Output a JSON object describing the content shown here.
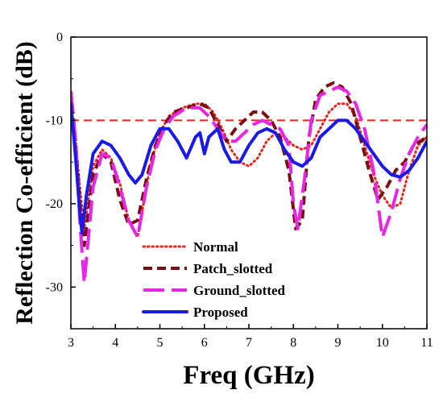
{
  "chart_data": {
    "type": "line",
    "title": "",
    "xlabel": "Freq (GHz)",
    "ylabel": "Reflection Co-efficient (dB)",
    "xlim": [
      3,
      11
    ],
    "ylim": [
      -35,
      0
    ],
    "xticks": [
      3,
      4,
      5,
      6,
      7,
      8,
      9,
      10,
      11
    ],
    "yticks": [
      0,
      -10,
      -20,
      -30
    ],
    "grid": false,
    "legend_position": "bottom-left",
    "reference_line": {
      "y": -10,
      "color": "#e8241c",
      "style": "dashed"
    },
    "series": [
      {
        "name": "Normal",
        "color": "#e8241c",
        "style": "dotted",
        "x": [
          3.0,
          3.1,
          3.2,
          3.3,
          3.5,
          3.7,
          3.9,
          4.1,
          4.3,
          4.5,
          4.6,
          4.8,
          5.0,
          5.2,
          5.5,
          5.8,
          6.0,
          6.2,
          6.4,
          6.6,
          6.8,
          7.0,
          7.2,
          7.4,
          7.6,
          7.8,
          8.0,
          8.2,
          8.4,
          8.6,
          8.8,
          9.0,
          9.2,
          9.4,
          9.6,
          9.8,
          10.0,
          10.2,
          10.4,
          10.6,
          10.8,
          11.0
        ],
        "y": [
          -8,
          -12,
          -18,
          -23,
          -15.5,
          -13.5,
          -14.5,
          -17.5,
          -22,
          -24,
          -21,
          -15,
          -11.5,
          -9.5,
          -8.5,
          -8,
          -8,
          -9,
          -11,
          -13.5,
          -15,
          -15.5,
          -14.5,
          -12.5,
          -11.5,
          -12,
          -13,
          -13.5,
          -13,
          -11,
          -9,
          -8,
          -8,
          -9.5,
          -13,
          -16.5,
          -19,
          -20.5,
          -20,
          -16,
          -13,
          -12
        ]
      },
      {
        "name": "Patch_slotted",
        "color": "#7a0f12",
        "style": "dashed",
        "x": [
          3.0,
          3.1,
          3.2,
          3.3,
          3.5,
          3.7,
          3.9,
          4.1,
          4.3,
          4.5,
          4.7,
          4.9,
          5.1,
          5.3,
          5.6,
          5.9,
          6.1,
          6.3,
          6.5,
          6.7,
          6.9,
          7.1,
          7.3,
          7.5,
          7.7,
          7.9,
          8.05,
          8.2,
          8.35,
          8.5,
          8.7,
          8.9,
          9.1,
          9.3,
          9.5,
          9.7,
          9.9,
          10.1,
          10.3,
          10.5,
          10.7,
          11.0
        ],
        "y": [
          -6.5,
          -12,
          -20,
          -25,
          -16.5,
          -14,
          -15,
          -19.5,
          -22.5,
          -22,
          -17,
          -13,
          -10.5,
          -9,
          -8.5,
          -8,
          -8.5,
          -10.5,
          -12.5,
          -11,
          -10,
          -9,
          -9,
          -10,
          -12,
          -16,
          -23,
          -22,
          -12,
          -7.5,
          -6,
          -5.5,
          -6,
          -8,
          -12,
          -16,
          -19.5,
          -18,
          -16,
          -15,
          -13,
          -12
        ]
      },
      {
        "name": "Ground_slotted",
        "color": "#e826e8",
        "style": "long-dashed",
        "x": [
          3.0,
          3.1,
          3.2,
          3.3,
          3.5,
          3.7,
          3.9,
          4.1,
          4.3,
          4.5,
          4.7,
          4.9,
          5.1,
          5.3,
          5.6,
          5.9,
          6.1,
          6.3,
          6.5,
          6.7,
          6.9,
          7.1,
          7.3,
          7.5,
          7.7,
          7.9,
          8.0,
          8.1,
          8.25,
          8.4,
          8.6,
          8.8,
          9.0,
          9.2,
          9.4,
          9.6,
          9.8,
          10.0,
          10.2,
          10.4,
          10.6,
          10.8,
          11.0
        ],
        "y": [
          -6.5,
          -12,
          -22,
          -29.5,
          -18,
          -14,
          -14.5,
          -18,
          -22,
          -24,
          -18,
          -13.5,
          -11,
          -9.5,
          -8.5,
          -8.5,
          -9.5,
          -11,
          -12.5,
          -12.5,
          -11.5,
          -10.5,
          -10,
          -10.5,
          -11,
          -13,
          -20,
          -23,
          -17,
          -10,
          -7,
          -6.5,
          -6,
          -6.5,
          -8,
          -11,
          -16,
          -24,
          -21,
          -17,
          -14,
          -12,
          -10.5
        ]
      },
      {
        "name": "Proposed",
        "color": "#1a1ae8",
        "style": "solid",
        "x": [
          3.0,
          3.1,
          3.2,
          3.25,
          3.35,
          3.5,
          3.7,
          3.9,
          4.1,
          4.3,
          4.45,
          4.6,
          4.8,
          5.0,
          5.2,
          5.4,
          5.6,
          5.8,
          5.9,
          6.0,
          6.1,
          6.2,
          6.3,
          6.45,
          6.6,
          6.8,
          7.0,
          7.2,
          7.4,
          7.6,
          7.8,
          8.0,
          8.2,
          8.4,
          8.6,
          8.8,
          9.0,
          9.2,
          9.4,
          9.6,
          9.8,
          10.0,
          10.2,
          10.4,
          10.6,
          10.8,
          11.0
        ],
        "y": [
          -8,
          -14,
          -21,
          -23.5,
          -19,
          -14,
          -12.5,
          -13,
          -14.5,
          -16.5,
          -17.5,
          -16.5,
          -13,
          -11,
          -11,
          -12.5,
          -14.5,
          -12,
          -11.5,
          -14,
          -12,
          -11.5,
          -11,
          -13.5,
          -15,
          -15,
          -13,
          -11.5,
          -11,
          -11.5,
          -13.5,
          -15,
          -15.5,
          -14.5,
          -12,
          -11,
          -10,
          -10,
          -11,
          -12.5,
          -14,
          -15.5,
          -16.5,
          -16.8,
          -16,
          -14.5,
          -12.5
        ]
      }
    ]
  }
}
